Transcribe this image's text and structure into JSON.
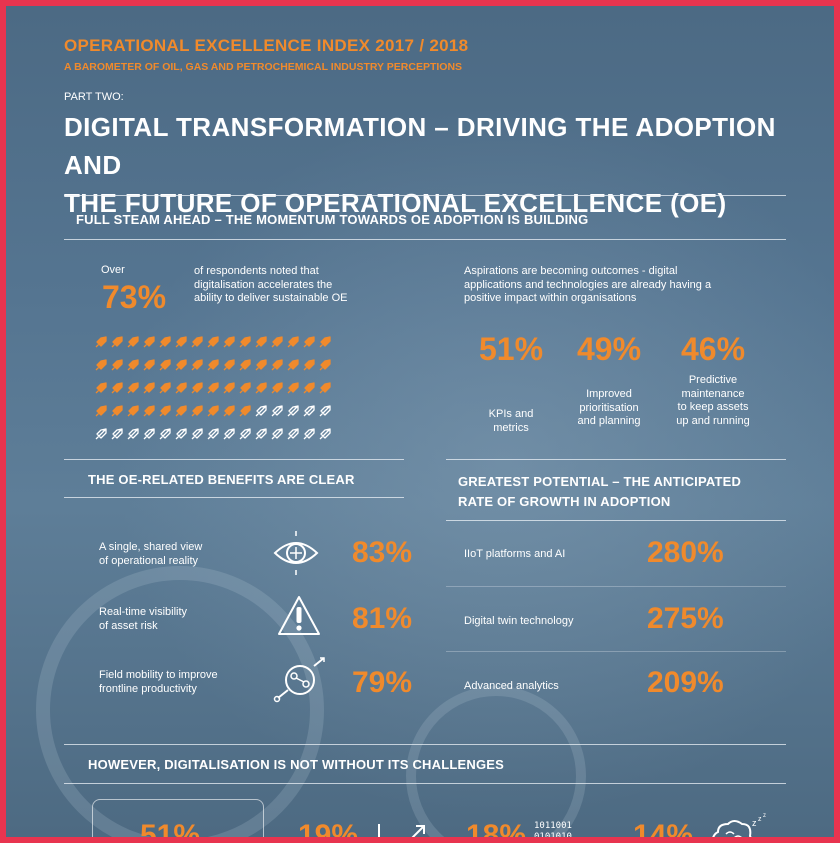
{
  "header": {
    "title": "OPERATIONAL EXCELLENCE INDEX 2017 / 2018",
    "subtitle": "A BAROMETER OF OIL, GAS AND PETROCHEMICAL INDUSTRY PERCEPTIONS",
    "part": "PART TWO:",
    "main_title_line1": "DIGITAL TRANSFORMATION – DRIVING THE ADOPTION AND",
    "main_title_line2": "THE FUTURE OF OPERATIONAL EXCELLENCE (OE)"
  },
  "momentum": {
    "heading": "FULL STEAM AHEAD – THE MOMENTUM TOWARDS OE ADOPTION IS BUILDING",
    "over_label": "Over",
    "over_value": "73%",
    "over_text_1": "of respondents noted that",
    "over_text_2": "digitalisation accelerates the",
    "over_text_3": "ability to deliver sustainable OE",
    "rocket_filled_fraction": 0.73,
    "aspirations_1": "Aspirations are becoming outcomes - digital",
    "aspirations_2": "applications and technologies are already having a",
    "aspirations_3": "positive impact within organisations",
    "stats": [
      {
        "value": "51%",
        "label_lines": [
          "KPIs and",
          "metrics"
        ]
      },
      {
        "value": "49%",
        "label_lines": [
          "Improved",
          "prioritisation",
          "and planning"
        ]
      },
      {
        "value": "46%",
        "label_lines": [
          "Predictive",
          "maintenance",
          "to keep assets",
          "up and running"
        ]
      }
    ]
  },
  "benefits": {
    "heading": "THE OE-RELATED BENEFITS ARE CLEAR",
    "items": [
      {
        "label_lines": [
          "A single, shared view",
          "of operational reality"
        ],
        "value": "83%",
        "icon": "eye-icon"
      },
      {
        "label_lines": [
          "Real-time visibility",
          "of asset risk"
        ],
        "value": "81%",
        "icon": "warning-icon"
      },
      {
        "label_lines": [
          "Field mobility to improve",
          "frontline productivity"
        ],
        "value": "79%",
        "icon": "mobility-icon"
      }
    ]
  },
  "potential": {
    "heading_1": "GREATEST POTENTIAL – THE ANTICIPATED",
    "heading_2": "RATE OF GROWTH IN ADOPTION",
    "items": [
      {
        "label": "IIoT platforms and AI",
        "value": "280%"
      },
      {
        "label": "Digital twin technology",
        "value": "275%"
      },
      {
        "label": "Advanced analytics",
        "value": "209%"
      }
    ]
  },
  "challenges": {
    "heading": "HOWEVER, DIGITALISATION IS NOT WITHOUT ITS CHALLENGES",
    "values": [
      "51%",
      "19%",
      "18%",
      "14%"
    ],
    "binary_text_1": "1011001",
    "binary_text_2": "0101010"
  },
  "colors": {
    "accent": "#f08a2c",
    "border": "#e8344f",
    "background": "#557591"
  }
}
